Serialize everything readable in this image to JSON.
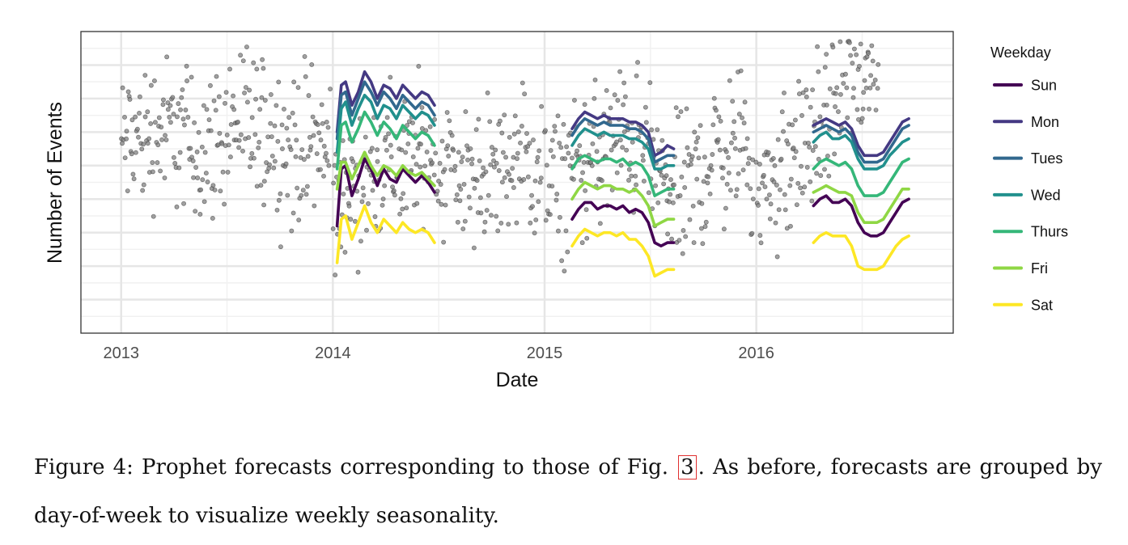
{
  "chart_data": {
    "type": "line",
    "title": "",
    "xlabel": "Date",
    "ylabel": "Number of Events",
    "xlim": [
      2012.81,
      2016.93
    ],
    "ylim": [
      0,
      9
    ],
    "x_ticks": [
      2013,
      2014,
      2015,
      2016
    ],
    "x_tick_labels": [
      "2013",
      "2014",
      "2015",
      "2016"
    ],
    "y_tick_labels": [],
    "grid": true,
    "legend": {
      "title": "Weekday",
      "placement": "right",
      "entries": [
        "Sun",
        "Mon",
        "Tues",
        "Wed",
        "Thurs",
        "Fri",
        "Sat"
      ]
    },
    "observed_points": {
      "name": "Observed daily events",
      "color": "#555555",
      "segments": [
        {
          "x_start": 2013.0,
          "x_end": 2013.99,
          "base": [
            5.6,
            5.8,
            6.1,
            6.0,
            5.5,
            5.7,
            6.4,
            6.2,
            5.9,
            5.4,
            5.7,
            5.5
          ]
        },
        {
          "x_start": 2014.0,
          "x_end": 2014.99,
          "base": [
            4.0,
            4.4,
            4.8,
            5.0,
            5.2,
            5.4,
            5.1,
            4.6,
            4.6,
            4.9,
            5.1,
            4.8
          ]
        },
        {
          "x_start": 2015.0,
          "x_end": 2015.99,
          "base": [
            4.2,
            4.6,
            5.0,
            5.4,
            5.8,
            5.7,
            4.6,
            4.0,
            4.6,
            5.4,
            5.6,
            5.3
          ]
        },
        {
          "x_start": 2016.0,
          "x_end": 2016.58,
          "base": [
            4.0,
            4.6,
            5.2,
            5.8,
            6.6,
            7.6,
            7.4,
            7.9
          ]
        }
      ]
    },
    "series": [
      {
        "name": "Sun",
        "color": "#440154",
        "x": [
          2014.02,
          2014.04,
          2014.06,
          2014.09,
          2014.12,
          2014.15,
          2014.18,
          2014.21,
          2014.24,
          2014.27,
          2014.3,
          2014.33,
          2014.36,
          2014.39,
          2014.42,
          2014.45,
          2014.48,
          2015.13,
          2015.16,
          2015.19,
          2015.22,
          2015.25,
          2015.28,
          2015.31,
          2015.34,
          2015.37,
          2015.4,
          2015.43,
          2015.46,
          2015.49,
          2015.52,
          2015.55,
          2015.58,
          2015.61,
          2016.27,
          2016.3,
          2016.33,
          2016.36,
          2016.39,
          2016.42,
          2016.45,
          2016.48,
          2016.51,
          2016.54,
          2016.57,
          2016.6,
          2016.63,
          2016.66,
          2016.69,
          2016.72
        ],
        "values": [
          3.2,
          4.9,
          5.0,
          4.1,
          4.6,
          5.2,
          4.9,
          4.4,
          4.9,
          4.6,
          4.5,
          4.9,
          4.7,
          4.5,
          4.7,
          4.5,
          4.2,
          3.4,
          3.7,
          3.9,
          3.9,
          3.7,
          3.8,
          3.8,
          3.7,
          3.8,
          3.6,
          3.7,
          3.6,
          3.3,
          2.7,
          2.6,
          2.7,
          2.7,
          3.8,
          4.0,
          4.1,
          3.9,
          3.9,
          4.0,
          3.8,
          3.3,
          3.0,
          2.9,
          2.9,
          3.0,
          3.3,
          3.6,
          3.9,
          4.0
        ]
      },
      {
        "name": "Mon",
        "color": "#443983",
        "x": [
          2014.02,
          2014.04,
          2014.06,
          2014.09,
          2014.12,
          2014.15,
          2014.18,
          2014.21,
          2014.24,
          2014.27,
          2014.3,
          2014.33,
          2014.36,
          2014.39,
          2014.42,
          2014.45,
          2014.48,
          2015.13,
          2015.16,
          2015.19,
          2015.22,
          2015.25,
          2015.28,
          2015.31,
          2015.34,
          2015.37,
          2015.4,
          2015.43,
          2015.46,
          2015.49,
          2015.52,
          2015.55,
          2015.58,
          2015.61,
          2016.27,
          2016.3,
          2016.33,
          2016.36,
          2016.39,
          2016.42,
          2016.45,
          2016.48,
          2016.51,
          2016.54,
          2016.57,
          2016.6,
          2016.63,
          2016.66,
          2016.69,
          2016.72
        ],
        "values": [
          6.0,
          7.4,
          7.5,
          6.8,
          7.2,
          7.8,
          7.5,
          7.0,
          7.4,
          7.3,
          7.0,
          7.4,
          7.2,
          7.0,
          7.2,
          7.1,
          6.8,
          6.1,
          6.4,
          6.6,
          6.5,
          6.4,
          6.5,
          6.4,
          6.4,
          6.4,
          6.3,
          6.3,
          6.2,
          6.0,
          5.3,
          5.4,
          5.6,
          5.5,
          6.2,
          6.3,
          6.4,
          6.3,
          6.2,
          6.3,
          6.1,
          5.6,
          5.3,
          5.3,
          5.3,
          5.4,
          5.7,
          6.0,
          6.3,
          6.4
        ]
      },
      {
        "name": "Tues",
        "color": "#31688e",
        "x": [
          2014.02,
          2014.04,
          2014.06,
          2014.09,
          2014.12,
          2014.15,
          2014.18,
          2014.21,
          2014.24,
          2014.27,
          2014.3,
          2014.33,
          2014.36,
          2014.39,
          2014.42,
          2014.45,
          2014.48,
          2015.13,
          2015.16,
          2015.19,
          2015.22,
          2015.25,
          2015.28,
          2015.31,
          2015.34,
          2015.37,
          2015.4,
          2015.43,
          2015.46,
          2015.49,
          2015.52,
          2015.55,
          2015.58,
          2015.61,
          2016.27,
          2016.3,
          2016.33,
          2016.36,
          2016.39,
          2016.42,
          2016.45,
          2016.48,
          2016.51,
          2016.54,
          2016.57,
          2016.6,
          2016.63,
          2016.66,
          2016.69,
          2016.72
        ],
        "values": [
          5.8,
          7.1,
          7.2,
          6.5,
          7.0,
          7.5,
          7.2,
          6.8,
          7.2,
          7.0,
          6.7,
          7.1,
          6.9,
          6.7,
          6.9,
          6.8,
          6.5,
          5.9,
          6.2,
          6.4,
          6.3,
          6.2,
          6.3,
          6.2,
          6.2,
          6.2,
          6.1,
          6.1,
          6.0,
          5.8,
          5.1,
          5.2,
          5.3,
          5.3,
          6.0,
          6.1,
          6.2,
          6.1,
          6.0,
          6.1,
          5.9,
          5.4,
          5.1,
          5.1,
          5.1,
          5.2,
          5.5,
          5.8,
          6.1,
          6.2
        ]
      },
      {
        "name": "Wed",
        "color": "#21908d",
        "x": [
          2014.02,
          2014.04,
          2014.06,
          2014.09,
          2014.12,
          2014.15,
          2014.18,
          2014.21,
          2014.24,
          2014.27,
          2014.3,
          2014.33,
          2014.36,
          2014.39,
          2014.42,
          2014.45,
          2014.48,
          2015.13,
          2015.16,
          2015.19,
          2015.22,
          2015.25,
          2015.28,
          2015.31,
          2015.34,
          2015.37,
          2015.4,
          2015.43,
          2015.46,
          2015.49,
          2015.52,
          2015.55,
          2015.58,
          2015.61,
          2016.27,
          2016.3,
          2016.33,
          2016.36,
          2016.39,
          2016.42,
          2016.45,
          2016.48,
          2016.51,
          2016.54,
          2016.57,
          2016.6,
          2016.63,
          2016.66,
          2016.69,
          2016.72
        ],
        "values": [
          5.4,
          6.7,
          6.9,
          6.2,
          6.7,
          7.1,
          6.9,
          6.4,
          6.8,
          6.7,
          6.4,
          6.8,
          6.6,
          6.4,
          6.6,
          6.5,
          6.2,
          5.6,
          5.9,
          6.1,
          6.0,
          5.9,
          6.0,
          5.9,
          5.9,
          5.9,
          5.8,
          5.8,
          5.7,
          5.5,
          4.9,
          4.9,
          5.0,
          5.0,
          5.7,
          5.9,
          6.0,
          5.8,
          5.8,
          5.9,
          5.7,
          5.2,
          4.9,
          4.9,
          4.9,
          5.0,
          5.3,
          5.5,
          5.7,
          5.8
        ]
      },
      {
        "name": "Thurs",
        "color": "#35b779",
        "x": [
          2014.02,
          2014.04,
          2014.06,
          2014.09,
          2014.12,
          2014.15,
          2014.18,
          2014.21,
          2014.24,
          2014.27,
          2014.3,
          2014.33,
          2014.36,
          2014.39,
          2014.42,
          2014.45,
          2014.48,
          2015.13,
          2015.16,
          2015.19,
          2015.22,
          2015.25,
          2015.28,
          2015.31,
          2015.34,
          2015.37,
          2015.4,
          2015.43,
          2015.46,
          2015.49,
          2015.52,
          2015.55,
          2015.58,
          2015.61,
          2016.27,
          2016.3,
          2016.33,
          2016.36,
          2016.39,
          2016.42,
          2016.45,
          2016.48,
          2016.51,
          2016.54,
          2016.57,
          2016.6,
          2016.63,
          2016.66,
          2016.69,
          2016.72
        ],
        "values": [
          4.9,
          6.2,
          6.3,
          5.7,
          6.1,
          6.6,
          6.3,
          5.9,
          6.3,
          6.1,
          5.8,
          6.2,
          6.0,
          5.8,
          6.0,
          5.9,
          5.6,
          4.9,
          5.2,
          5.3,
          5.2,
          5.1,
          5.2,
          5.2,
          5.1,
          5.2,
          5.0,
          5.1,
          5.0,
          4.7,
          4.1,
          4.2,
          4.3,
          4.3,
          4.9,
          5.1,
          5.2,
          5.1,
          5.0,
          5.1,
          4.9,
          4.4,
          4.1,
          4.1,
          4.1,
          4.2,
          4.5,
          4.8,
          5.1,
          5.2
        ]
      },
      {
        "name": "Fri",
        "color": "#8fd744",
        "x": [
          2014.02,
          2014.04,
          2014.06,
          2014.09,
          2014.12,
          2014.15,
          2014.18,
          2014.21,
          2014.24,
          2014.27,
          2014.3,
          2014.33,
          2014.36,
          2014.39,
          2014.42,
          2014.45,
          2014.48,
          2015.13,
          2015.16,
          2015.19,
          2015.22,
          2015.25,
          2015.28,
          2015.31,
          2015.34,
          2015.37,
          2015.4,
          2015.43,
          2015.46,
          2015.49,
          2015.52,
          2015.55,
          2015.58,
          2015.61,
          2016.27,
          2016.3,
          2016.33,
          2016.36,
          2016.39,
          2016.42,
          2016.45,
          2016.48,
          2016.51,
          2016.54,
          2016.57,
          2016.6,
          2016.63,
          2016.66,
          2016.69,
          2016.72
        ],
        "values": [
          4.3,
          5.1,
          5.1,
          4.6,
          5.0,
          5.4,
          5.0,
          4.7,
          5.0,
          4.9,
          4.7,
          5.0,
          4.8,
          4.7,
          4.8,
          4.6,
          4.4,
          4.0,
          4.3,
          4.5,
          4.4,
          4.3,
          4.4,
          4.4,
          4.3,
          4.3,
          4.2,
          4.3,
          4.1,
          3.8,
          3.2,
          3.3,
          3.4,
          3.4,
          4.2,
          4.3,
          4.4,
          4.3,
          4.2,
          4.2,
          4.1,
          3.6,
          3.3,
          3.3,
          3.3,
          3.4,
          3.7,
          4.0,
          4.3,
          4.3
        ]
      },
      {
        "name": "Sat",
        "color": "#fde725",
        "x": [
          2014.02,
          2014.04,
          2014.06,
          2014.09,
          2014.12,
          2014.15,
          2014.18,
          2014.21,
          2014.24,
          2014.27,
          2014.3,
          2014.33,
          2014.36,
          2014.39,
          2014.42,
          2014.45,
          2014.48,
          2015.13,
          2015.16,
          2015.19,
          2015.22,
          2015.25,
          2015.28,
          2015.31,
          2015.34,
          2015.37,
          2015.4,
          2015.43,
          2015.46,
          2015.49,
          2015.52,
          2015.55,
          2015.58,
          2015.61,
          2016.27,
          2016.3,
          2016.33,
          2016.36,
          2016.39,
          2016.42,
          2016.45,
          2016.48,
          2016.51,
          2016.54,
          2016.57,
          2016.6,
          2016.63,
          2016.66,
          2016.69,
          2016.72
        ],
        "values": [
          2.1,
          3.4,
          3.5,
          2.8,
          3.3,
          3.8,
          3.3,
          3.0,
          3.4,
          3.2,
          3.0,
          3.3,
          3.1,
          3.0,
          3.1,
          3.0,
          2.7,
          2.6,
          2.9,
          3.1,
          3.0,
          2.9,
          3.0,
          3.0,
          2.9,
          3.0,
          2.8,
          2.8,
          2.6,
          2.3,
          1.7,
          1.8,
          1.9,
          1.9,
          2.7,
          2.9,
          3.0,
          2.9,
          2.9,
          2.9,
          2.6,
          2.0,
          1.9,
          1.9,
          1.9,
          2.0,
          2.3,
          2.6,
          2.8,
          2.9
        ]
      }
    ]
  },
  "caption": {
    "prefix": "Figure 4:  Prophet forecasts corresponding to those of Fig.",
    "ref": "3",
    "suffix": ".  As before, forecasts are grouped by day-of-week to visualize weekly seasonality."
  }
}
